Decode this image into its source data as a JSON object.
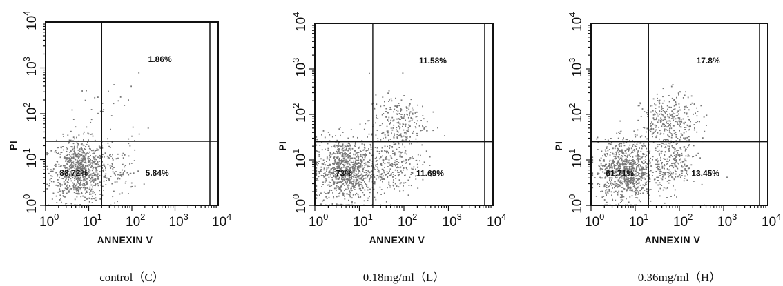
{
  "chart_data": [
    {
      "type": "scatter",
      "caption": "control（C）",
      "xlabel": "ANNEXIN V",
      "ylabel": "PI",
      "scale": "log",
      "xlim": [
        1,
        10000
      ],
      "ylim": [
        1,
        10000
      ],
      "ticks": [
        {
          "base": "10",
          "exp": "0"
        },
        {
          "base": "10",
          "exp": "1"
        },
        {
          "base": "10",
          "exp": "2"
        },
        {
          "base": "10",
          "exp": "3"
        },
        {
          "base": "10",
          "exp": "4"
        }
      ],
      "gate": {
        "x": 20,
        "y": 25
      },
      "quadrant_labels": {
        "upper_right": "1.86%",
        "lower_left": "88.72%",
        "lower_right": "5.84%"
      },
      "dot_color": "#777777",
      "populations": [
        {
          "quadrant": "lower-left",
          "count": 820,
          "center": [
            6,
            6
          ],
          "spread": [
            0.32,
            0.34
          ]
        },
        {
          "quadrant": "lower-right",
          "count": 80,
          "center": [
            50,
            6
          ],
          "spread": [
            0.25,
            0.32
          ]
        },
        {
          "quadrant": "upper",
          "count": 35,
          "center": [
            25,
            120
          ],
          "spread": [
            0.45,
            0.4
          ]
        }
      ]
    },
    {
      "type": "scatter",
      "caption": "0.18mg/ml（L）",
      "xlabel": "ANNEXIN V",
      "ylabel": "PI",
      "scale": "log",
      "xlim": [
        1,
        10000
      ],
      "ylim": [
        1,
        10000
      ],
      "ticks": [
        {
          "base": "10",
          "exp": "0"
        },
        {
          "base": "10",
          "exp": "1"
        },
        {
          "base": "10",
          "exp": "2"
        },
        {
          "base": "10",
          "exp": "3"
        },
        {
          "base": "10",
          "exp": "4"
        }
      ],
      "gate": {
        "x": 20,
        "y": 25
      },
      "quadrant_labels": {
        "upper_right": "11.58%",
        "lower_left": "73%",
        "lower_right": "11.69%"
      },
      "dot_color": "#777777",
      "populations": [
        {
          "quadrant": "lower-left",
          "count": 900,
          "center": [
            5,
            6
          ],
          "spread": [
            0.35,
            0.35
          ]
        },
        {
          "quadrant": "lower-right",
          "count": 220,
          "center": [
            60,
            8
          ],
          "spread": [
            0.3,
            0.3
          ]
        },
        {
          "quadrant": "upper-right",
          "count": 230,
          "center": [
            70,
            70
          ],
          "spread": [
            0.32,
            0.3
          ]
        }
      ]
    },
    {
      "type": "scatter",
      "caption": "0.36mg/ml（H）",
      "xlabel": "ANNEXIN V",
      "ylabel": "PI",
      "scale": "log",
      "xlim": [
        1,
        10000
      ],
      "ylim": [
        1,
        10000
      ],
      "ticks": [
        {
          "base": "10",
          "exp": "0"
        },
        {
          "base": "10",
          "exp": "1"
        },
        {
          "base": "10",
          "exp": "2"
        },
        {
          "base": "10",
          "exp": "3"
        },
        {
          "base": "10",
          "exp": "4"
        }
      ],
      "gate": {
        "x": 20,
        "y": 25
      },
      "quadrant_labels": {
        "upper_right": "17.8%",
        "lower_left": "61.71%",
        "lower_right": "13.45%"
      },
      "dot_color": "#777777",
      "populations": [
        {
          "quadrant": "lower-left",
          "count": 850,
          "center": [
            6,
            6
          ],
          "spread": [
            0.32,
            0.33
          ]
        },
        {
          "quadrant": "lower-right",
          "count": 250,
          "center": [
            60,
            8
          ],
          "spread": [
            0.3,
            0.3
          ]
        },
        {
          "quadrant": "upper-right",
          "count": 330,
          "center": [
            60,
            70
          ],
          "spread": [
            0.32,
            0.3
          ]
        }
      ]
    }
  ]
}
